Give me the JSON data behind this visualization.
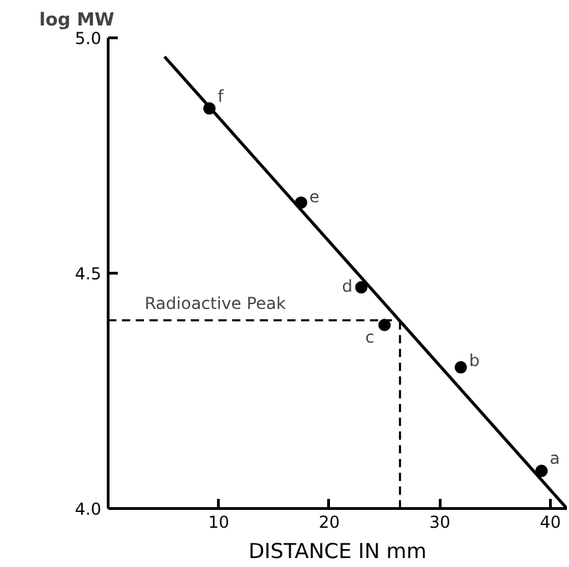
{
  "chart_data": {
    "type": "scatter",
    "xlabel": "DISTANCE IN mm",
    "ylabel": "log MW",
    "xlim": [
      0,
      41.5
    ],
    "ylim": [
      4.0,
      5.0
    ],
    "xticks": [
      10,
      20,
      30,
      40
    ],
    "yticks": [
      {
        "value": 4.0,
        "label": "4.0"
      },
      {
        "value": 4.5,
        "label": "4.5"
      },
      {
        "value": 5.0,
        "label": "5.0"
      }
    ],
    "grid": false,
    "marker": "circle",
    "series": [
      {
        "color": "#000000",
        "x": [
          39.2,
          31.9,
          25.0,
          22.9,
          17.45,
          9.16
        ],
        "values": [
          4.08,
          4.3,
          4.39,
          4.47,
          4.65,
          4.85
        ]
      },
      {
        "type": "line",
        "color": "#000000",
        "line_style": "solid",
        "marker": "none",
        "x": [
          5.1,
          41.5
        ],
        "values": [
          4.96,
          4.0
        ]
      }
    ],
    "ref_lines": [
      {
        "axis": "y",
        "value": 4.4,
        "label": "Radioactive Peak",
        "line_style": "dashed"
      },
      {
        "axis": "x",
        "value": 26.4,
        "line_style": "dashed"
      }
    ],
    "annotations": [
      {
        "text": "a",
        "x": 39.2,
        "y": 4.08
      },
      {
        "text": "b",
        "x": 31.9,
        "y": 4.3
      },
      {
        "text": "c",
        "x": 25.0,
        "y": 4.39
      },
      {
        "text": "d",
        "x": 22.9,
        "y": 4.47
      },
      {
        "text": "e",
        "x": 17.45,
        "y": 4.65
      },
      {
        "text": "f",
        "x": 9.16,
        "y": 4.85
      }
    ]
  }
}
